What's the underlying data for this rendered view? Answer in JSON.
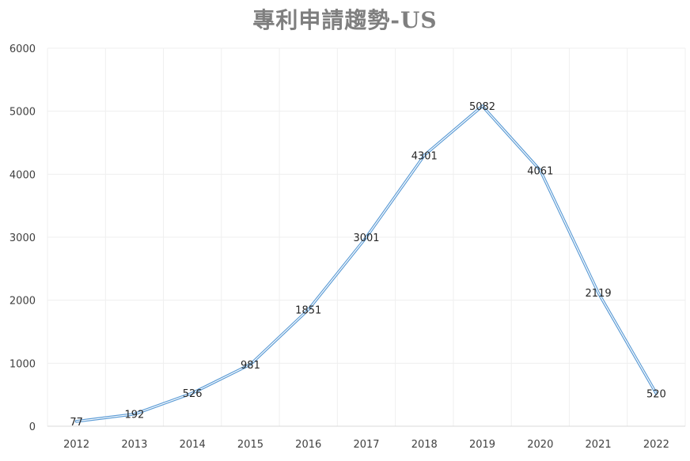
{
  "chart_data": {
    "type": "line",
    "title": "專利申請趨勢-US",
    "xlabel": "",
    "ylabel": "",
    "categories": [
      "2012",
      "2013",
      "2014",
      "2015",
      "2016",
      "2017",
      "2018",
      "2019",
      "2020",
      "2021",
      "2022"
    ],
    "series": [
      {
        "values": [
          77,
          192,
          526,
          981,
          1851,
          3001,
          4301,
          5082,
          4061,
          2119,
          520
        ],
        "color": "#5b9bd5"
      }
    ],
    "ylim": [
      0,
      6000
    ],
    "yticks": [
      0,
      1000,
      2000,
      3000,
      4000,
      5000,
      6000
    ],
    "grid": true,
    "legend": "none",
    "data_labels": true
  }
}
